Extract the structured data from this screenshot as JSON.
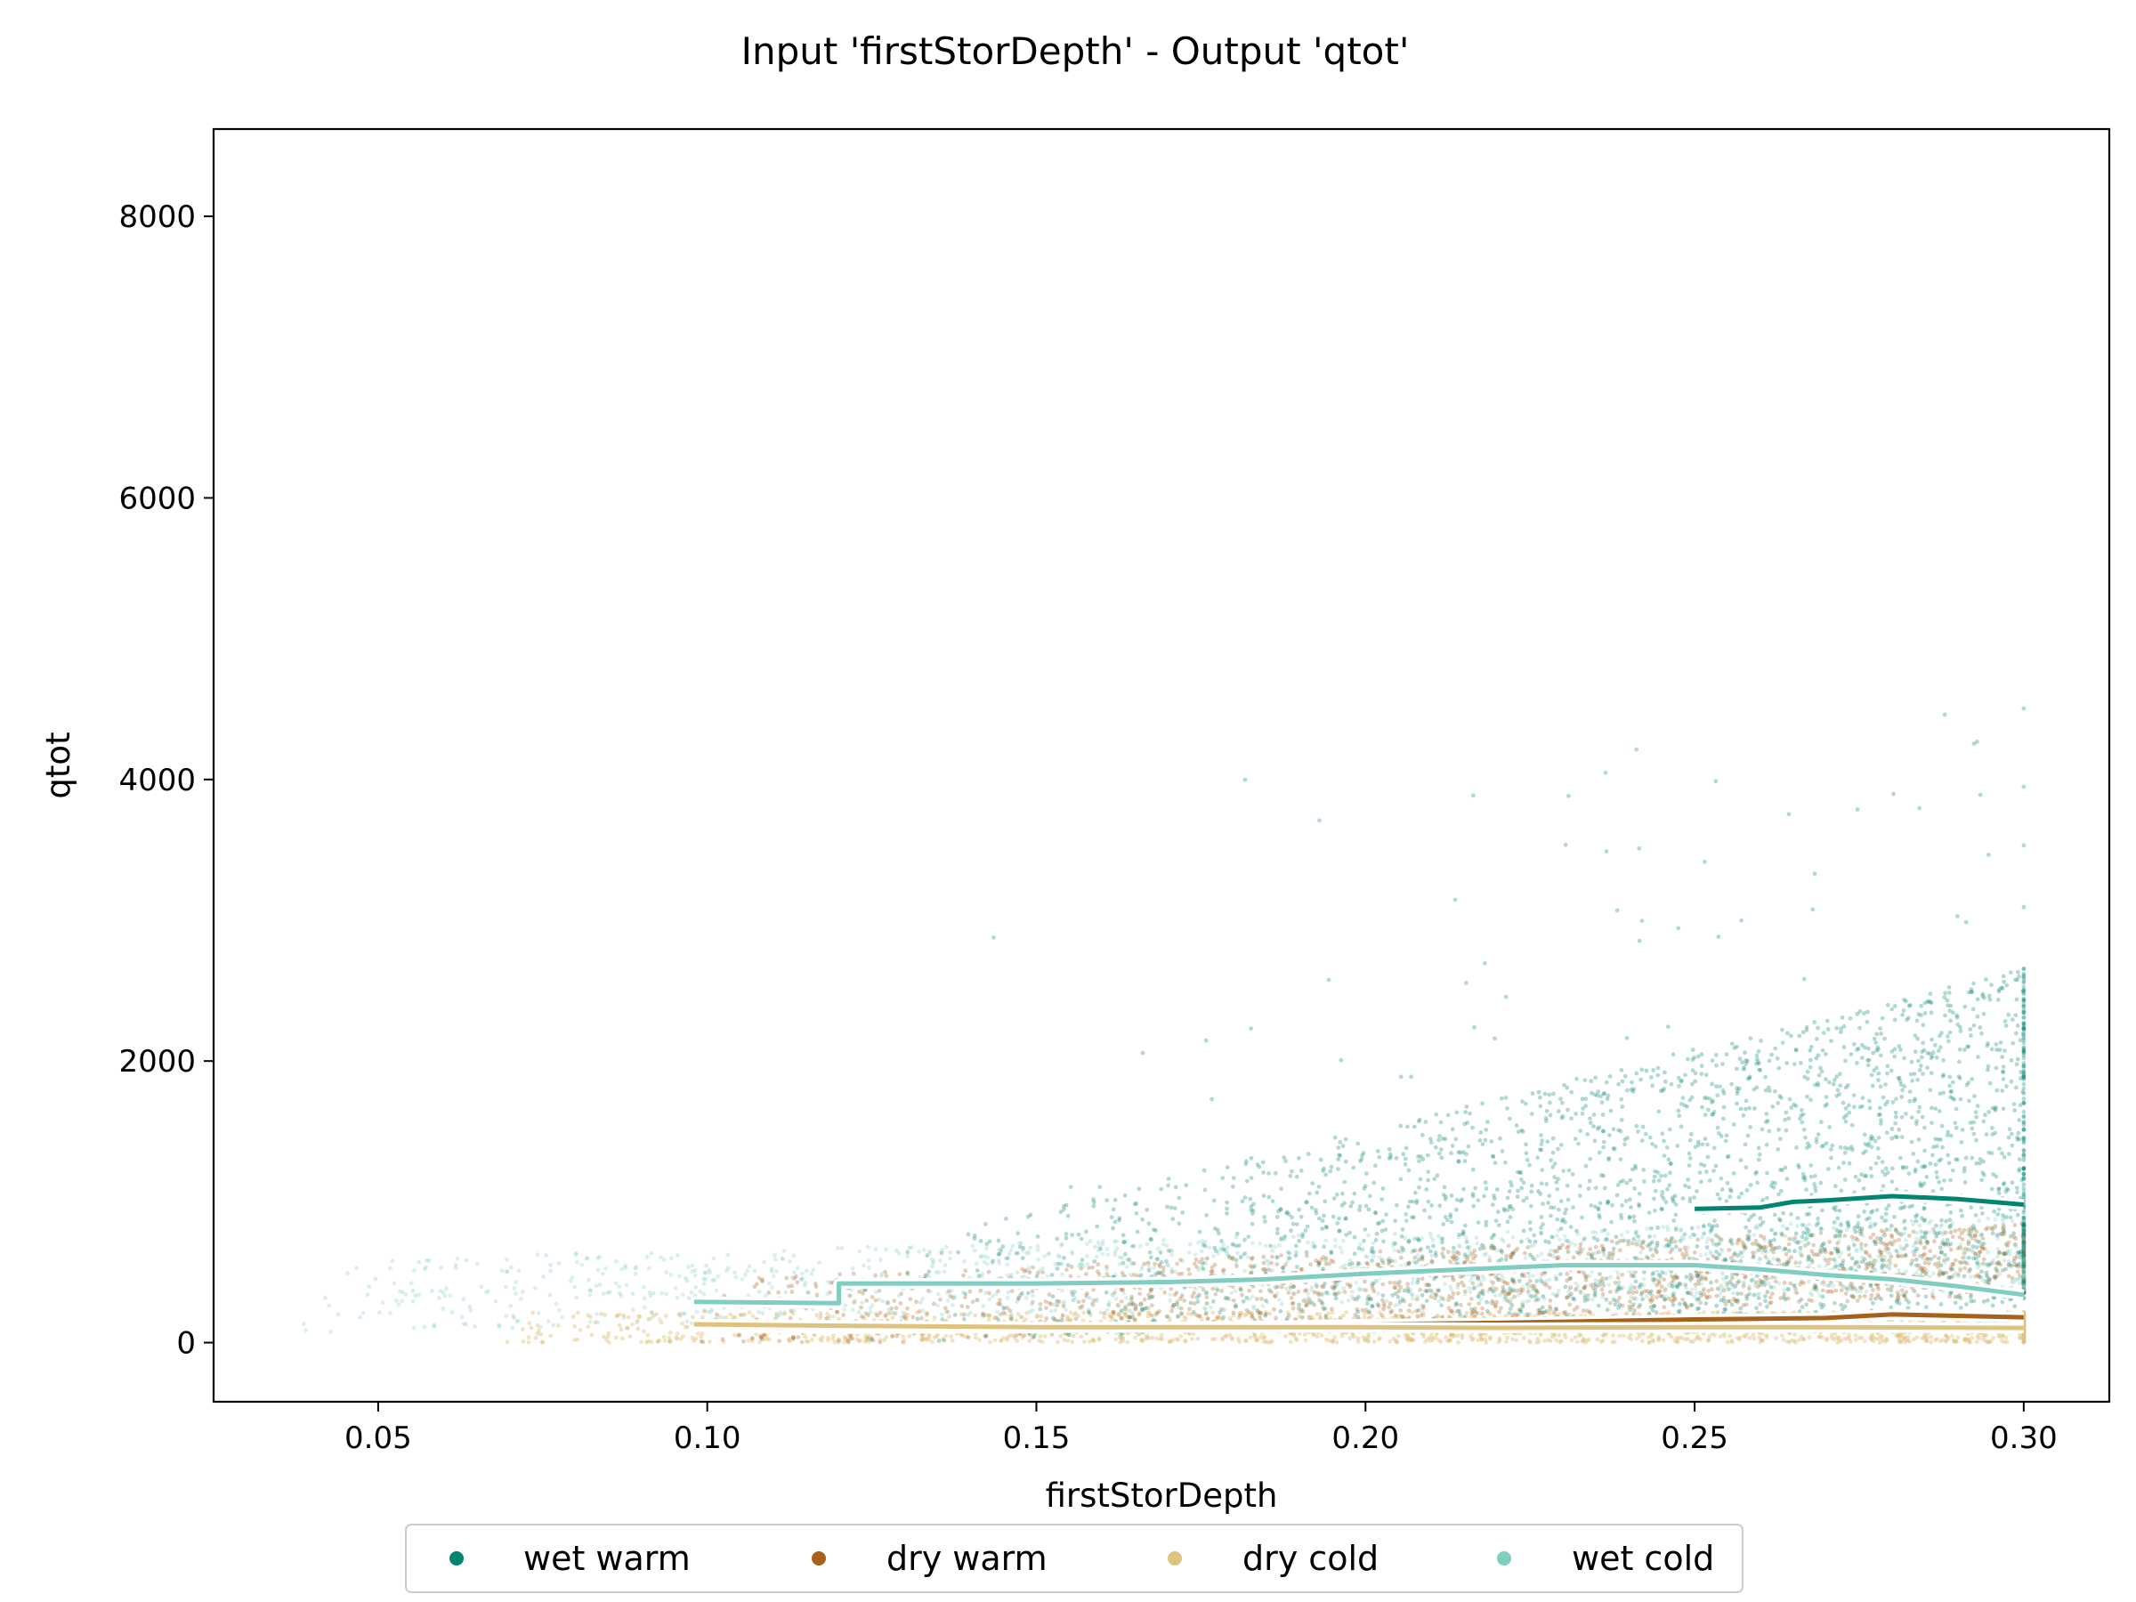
{
  "chart_data": {
    "type": "scatter",
    "title": "Input 'firstStorDepth' - Output 'qtot'",
    "xlabel": "firstStorDepth",
    "ylabel": "qtot",
    "xlim": [
      0.025,
      0.313
    ],
    "ylim": [
      -420,
      8620
    ],
    "xticks": [
      0.05,
      0.1,
      0.15,
      0.2,
      0.25,
      0.3
    ],
    "xtick_labels": [
      "0.05",
      "0.10",
      "0.15",
      "0.20",
      "0.25",
      "0.30"
    ],
    "yticks": [
      0,
      2000,
      4000,
      6000,
      8000
    ],
    "ytick_labels": [
      "0",
      "2000",
      "4000",
      "6000",
      "8000"
    ],
    "grid": false,
    "legend_position": "bottom-center",
    "legend": [
      "wet warm",
      "dry warm",
      "dry cold",
      "wet cold"
    ],
    "series": [
      {
        "name": "wet warm",
        "color": "#018571",
        "scatter_x_range": [
          0.12,
          0.3
        ],
        "trend": {
          "x": [
            0.25,
            0.26,
            0.265,
            0.27,
            0.28,
            0.29,
            0.3
          ],
          "y": [
            950,
            960,
            1000,
            1010,
            1040,
            1020,
            980
          ]
        }
      },
      {
        "name": "dry warm",
        "color": "#a6611a",
        "scatter_x_range": [
          0.098,
          0.3
        ],
        "trend": {
          "x": [
            0.1,
            0.12,
            0.15,
            0.18,
            0.2,
            0.22,
            0.25,
            0.26,
            0.27,
            0.28,
            0.29,
            0.3
          ],
          "y": [
            110,
            100,
            105,
            115,
            130,
            140,
            165,
            170,
            175,
            200,
            190,
            180
          ]
        }
      },
      {
        "name": "dry cold",
        "color": "#dfc27d",
        "scatter_x_range": [
          0.069,
          0.3
        ],
        "trend": {
          "x": [
            0.098,
            0.12,
            0.15,
            0.18,
            0.2,
            0.22,
            0.25,
            0.27,
            0.3
          ],
          "y": [
            130,
            120,
            110,
            110,
            110,
            105,
            110,
            110,
            105
          ]
        }
      },
      {
        "name": "wet cold",
        "color": "#80cdc1",
        "scatter_x_range": [
          0.038,
          0.3
        ],
        "trend": {
          "x": [
            0.098,
            0.12,
            0.12,
            0.15,
            0.17,
            0.185,
            0.2,
            0.22,
            0.23,
            0.25,
            0.26,
            0.27,
            0.28,
            0.29,
            0.3
          ],
          "y": [
            290,
            280,
            420,
            420,
            430,
            450,
            490,
            530,
            550,
            550,
            520,
            480,
            450,
            400,
            340
          ]
        }
      }
    ]
  }
}
